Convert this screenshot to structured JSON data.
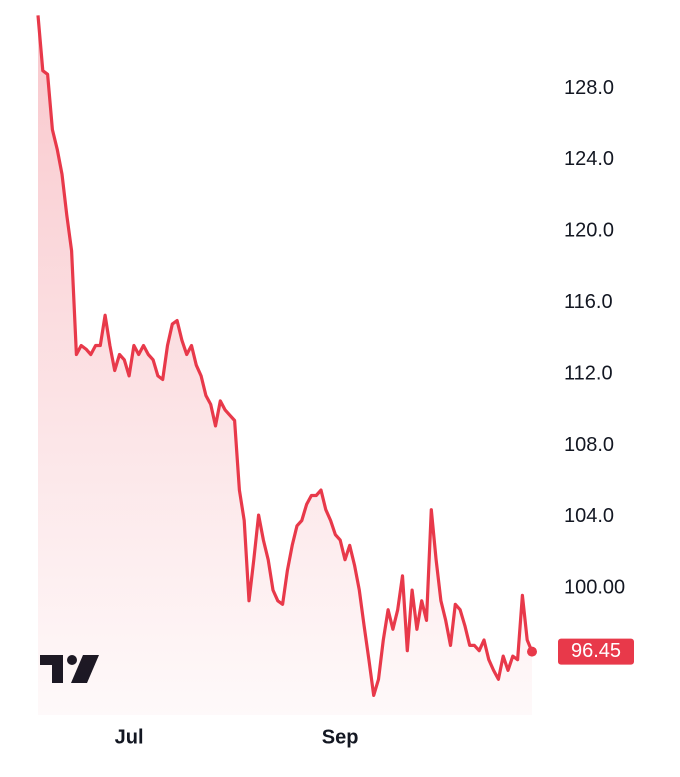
{
  "chart_data": {
    "type": "line",
    "color": "#e8394a",
    "values": [
      132.1,
      129.0,
      128.8,
      125.7,
      124.6,
      123.2,
      120.9,
      118.9,
      113.1,
      113.6,
      113.4,
      113.1,
      113.6,
      113.6,
      115.3,
      113.6,
      112.2,
      113.1,
      112.8,
      111.9,
      113.6,
      113.1,
      113.6,
      113.1,
      112.8,
      111.9,
      111.7,
      113.6,
      114.8,
      115.0,
      113.9,
      113.1,
      113.6,
      112.5,
      111.9,
      110.8,
      110.3,
      109.1,
      110.5,
      110.0,
      109.7,
      109.4,
      105.5,
      103.8,
      99.3,
      101.6,
      104.1,
      102.7,
      101.6,
      99.9,
      99.3,
      99.1,
      101.0,
      102.4,
      103.5,
      103.8,
      104.7,
      105.2,
      105.2,
      105.5,
      104.4,
      103.8,
      103.0,
      102.7,
      101.6,
      102.4,
      101.3,
      99.9,
      97.9,
      96.0,
      94.0,
      94.9,
      97.1,
      98.8,
      97.7,
      98.8,
      100.7,
      96.5,
      99.9,
      97.7,
      99.3,
      98.2,
      104.4,
      101.6,
      99.3,
      98.2,
      96.8,
      99.1,
      98.8,
      97.9,
      96.8,
      96.8,
      96.5,
      97.1,
      96.0,
      95.4,
      94.9,
      96.2,
      95.4,
      96.2,
      96.0,
      99.6,
      97.1,
      96.45
    ],
    "xlim": [
      0,
      103
    ],
    "xticks": [
      {
        "value": 19,
        "label": "Jul"
      },
      {
        "value": 63,
        "label": "Sep"
      }
    ],
    "ylim": [
      92.9,
      132.4
    ],
    "yticks": [
      {
        "value": 100,
        "label": "100.00"
      },
      {
        "value": 104,
        "label": "104.0"
      },
      {
        "value": 108,
        "label": "108.0"
      },
      {
        "value": 112,
        "label": "112.0"
      },
      {
        "value": 116,
        "label": "116.0"
      },
      {
        "value": 120,
        "label": "120.0"
      },
      {
        "value": 124,
        "label": "124.0"
      },
      {
        "value": 128,
        "label": "128.0"
      }
    ],
    "grid": false,
    "area_fill": true
  }
}
